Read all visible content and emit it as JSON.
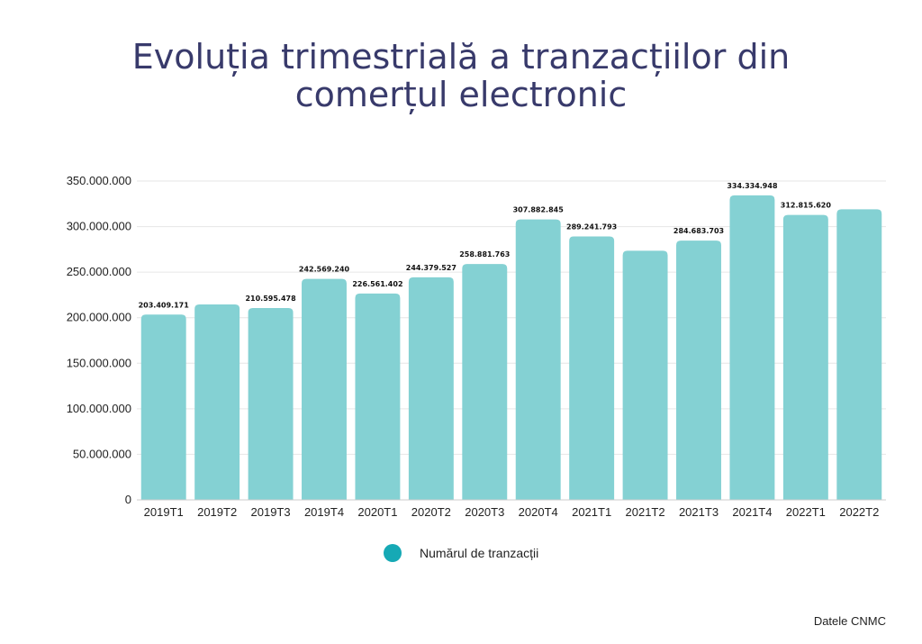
{
  "title_lines": [
    "Evoluția trimestrială a tranzacțiilor din",
    "comerțul electronic"
  ],
  "source": "Datele CNMC",
  "colors": {
    "bar": "#84d1d3",
    "legend_marker": "#16a9b5",
    "title": "#383a6b",
    "grid": "#e6e6e6"
  },
  "chart_data": {
    "type": "bar",
    "title": "Evoluția trimestrială a tranzacțiilor din comerțul electronic",
    "xlabel": "",
    "ylabel": "",
    "ylim": [
      0,
      350000000
    ],
    "y_ticks": [
      0,
      50000000,
      100000000,
      150000000,
      200000000,
      250000000,
      300000000,
      350000000
    ],
    "y_tick_labels": [
      "0",
      "50.000.000",
      "100.000.000",
      "150.000.000",
      "200.000.000",
      "250.000.000",
      "300.000.000",
      "350.000.000"
    ],
    "grid": true,
    "legend_position": "bottom",
    "categories": [
      "2019T1",
      "2019T2",
      "2019T3",
      "2019T4",
      "2020T1",
      "2020T2",
      "2020T3",
      "2020T4",
      "2021T1",
      "2021T2",
      "2021T3",
      "2021T4",
      "2022T1",
      "2022T2"
    ],
    "series": [
      {
        "name": "Numărul de tranzacții",
        "values": [
          203409171,
          214500000,
          210595478,
          242569240,
          226561402,
          244379527,
          258881763,
          307882845,
          289241793,
          273500000,
          284683703,
          334334948,
          312815620,
          319000000
        ],
        "data_labels": [
          "203.409.171",
          "",
          "210.595.478",
          "242.569.240",
          "226.561.402",
          "244.379.527",
          "258.881.763",
          "307.882.845",
          "289.241.793",
          "",
          "284.683.703",
          "334.334.948",
          "312.815.620",
          ""
        ]
      }
    ]
  }
}
